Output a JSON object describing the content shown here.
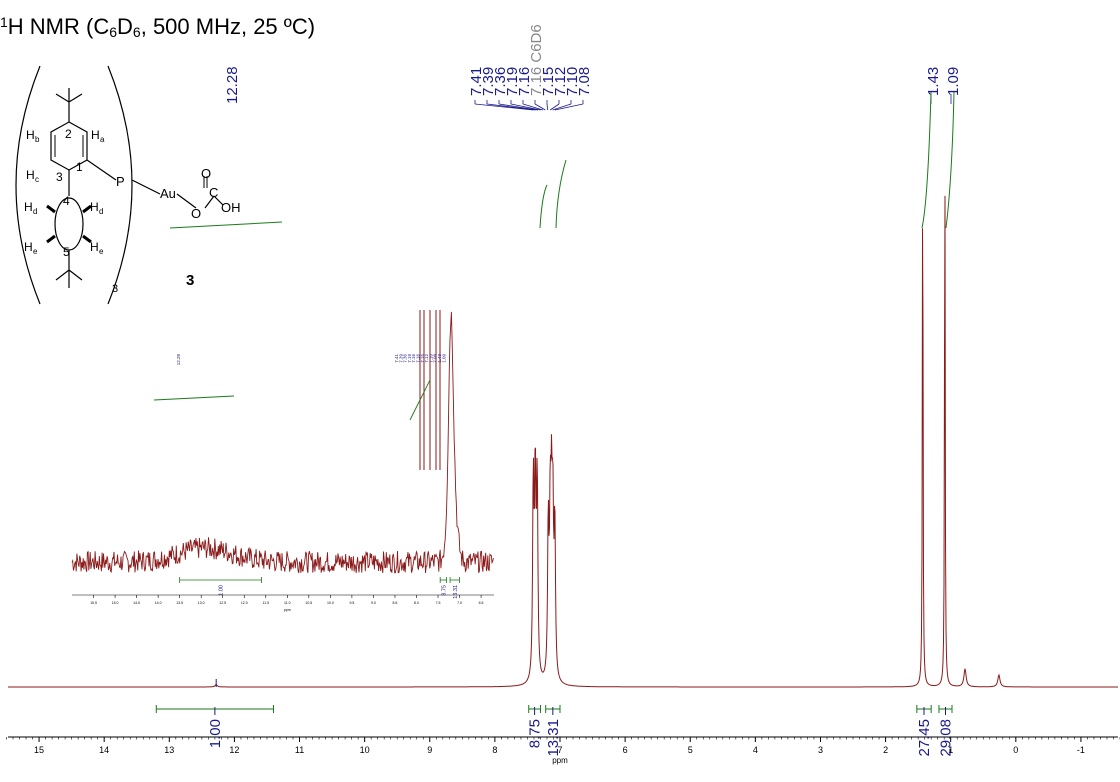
{
  "title": {
    "nucleus_mass": "1",
    "nucleus": "H NMR (C",
    "sub1": "6",
    "mid": "D",
    "sub2": "6",
    "rest": ", 500 MHz, 25 ºC)"
  },
  "compound": {
    "label": "3",
    "atoms": {
      "P": "P",
      "Au": "Au",
      "O1": "O",
      "C": "C",
      "O2": "O",
      "OH": "OH",
      "Ha": "H",
      "Ha_sub": "a",
      "Hb": "H",
      "Hb_sub": "b",
      "Hc": "H",
      "Hc_sub": "c",
      "Hd": "H",
      "Hd_sub": "d",
      "He": "H",
      "He_sub": "e",
      "n1": "1",
      "n2": "2",
      "n3": "3",
      "n4": "4",
      "n5": "5",
      "count": "3"
    }
  },
  "colors": {
    "spectrum": "#8b1a1a",
    "integral": "#1a7a1a",
    "peak_label": "#1a1a8c",
    "solvent_label": "#888888",
    "axis": "#000000"
  },
  "chart_data": {
    "type": "line",
    "xlabel": "ppm",
    "xlim": [
      15.6,
      -1.6
    ],
    "x_reversed": true,
    "x_ticks": [
      15,
      14,
      13,
      12,
      11,
      10,
      9,
      8,
      7,
      6,
      5,
      4,
      3,
      2,
      1,
      0,
      -1
    ],
    "grid": false,
    "peak_labels": [
      {
        "ppm": 12.28,
        "label": "12.28"
      },
      {
        "ppm": 7.41,
        "label": "7.41"
      },
      {
        "ppm": 7.39,
        "label": "7.39"
      },
      {
        "ppm": 7.36,
        "label": "7.36"
      },
      {
        "ppm": 7.19,
        "label": "7.19"
      },
      {
        "ppm": 7.16,
        "label": "7.16"
      },
      {
        "ppm": 7.16,
        "label": "7.16 C6D6",
        "solvent": true
      },
      {
        "ppm": 7.15,
        "label": "7.15"
      },
      {
        "ppm": 7.12,
        "label": "7.12"
      },
      {
        "ppm": 7.1,
        "label": "7.10"
      },
      {
        "ppm": 7.08,
        "label": "7.08"
      },
      {
        "ppm": 1.43,
        "label": "1.43"
      },
      {
        "ppm": 1.09,
        "label": "1.09"
      }
    ],
    "signals": [
      {
        "ppm": 7.38,
        "height": 0.62
      },
      {
        "ppm": 7.13,
        "height": 0.8
      },
      {
        "ppm": 1.43,
        "height": 0.96
      },
      {
        "ppm": 1.09,
        "height": 0.96
      },
      {
        "ppm": 0.78,
        "height": 0.03
      },
      {
        "ppm": 0.26,
        "height": 0.02
      },
      {
        "ppm": 12.28,
        "height": 0.004
      }
    ],
    "integrals": [
      {
        "from": 13.2,
        "to": 11.4,
        "value": "1.00"
      },
      {
        "from": 7.48,
        "to": 7.3,
        "value": "8.75"
      },
      {
        "from": 7.22,
        "to": 7.0,
        "value": "13.31"
      },
      {
        "from": 1.52,
        "to": 1.3,
        "value": "27.45"
      },
      {
        "from": 1.18,
        "to": 0.98,
        "value": "29.08"
      }
    ],
    "inset": {
      "xlim": [
        16.0,
        6.2
      ],
      "x_ticks": [
        15.5,
        15.0,
        14.5,
        14.0,
        13.5,
        13.0,
        12.5,
        12.0,
        11.5,
        11.0,
        10.5,
        10.0,
        9.5,
        9.0,
        8.5,
        8.0,
        7.5,
        7.0,
        6.5
      ],
      "xlabel": "ppm",
      "integrals": [
        {
          "from": 13.5,
          "to": 11.6,
          "value": "1.00"
        },
        {
          "from": 7.45,
          "to": 7.3,
          "value": "8.75"
        },
        {
          "from": 7.22,
          "to": 7.0,
          "value": "13.31"
        }
      ]
    }
  }
}
